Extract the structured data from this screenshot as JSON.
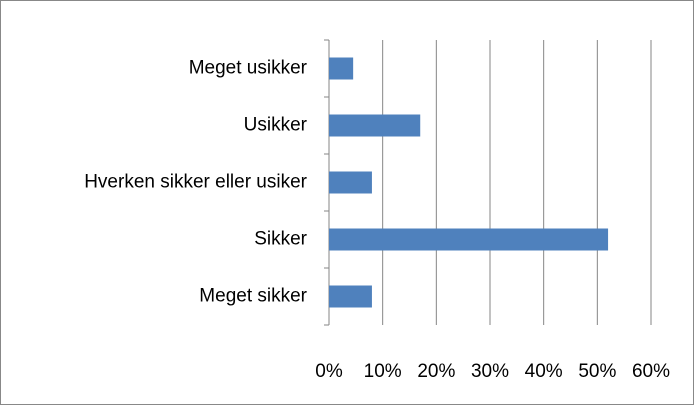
{
  "chart_data": {
    "type": "bar",
    "orientation": "horizontal",
    "categories": [
      "Meget usikker",
      "Usikker",
      "Hverken sikker eller usiker",
      "Sikker",
      "Meget sikker"
    ],
    "values": [
      4.5,
      17,
      8,
      52,
      8
    ],
    "color": "#4f81bd",
    "xlim": [
      0,
      60
    ],
    "xticks": [
      {
        "value": 0,
        "label": "0%"
      },
      {
        "value": 10,
        "label": "10%"
      },
      {
        "value": 20,
        "label": "20%"
      },
      {
        "value": 30,
        "label": "30%"
      },
      {
        "value": 40,
        "label": "40%"
      },
      {
        "value": 50,
        "label": "50%"
      },
      {
        "value": 60,
        "label": "60%"
      }
    ],
    "grid": true
  }
}
